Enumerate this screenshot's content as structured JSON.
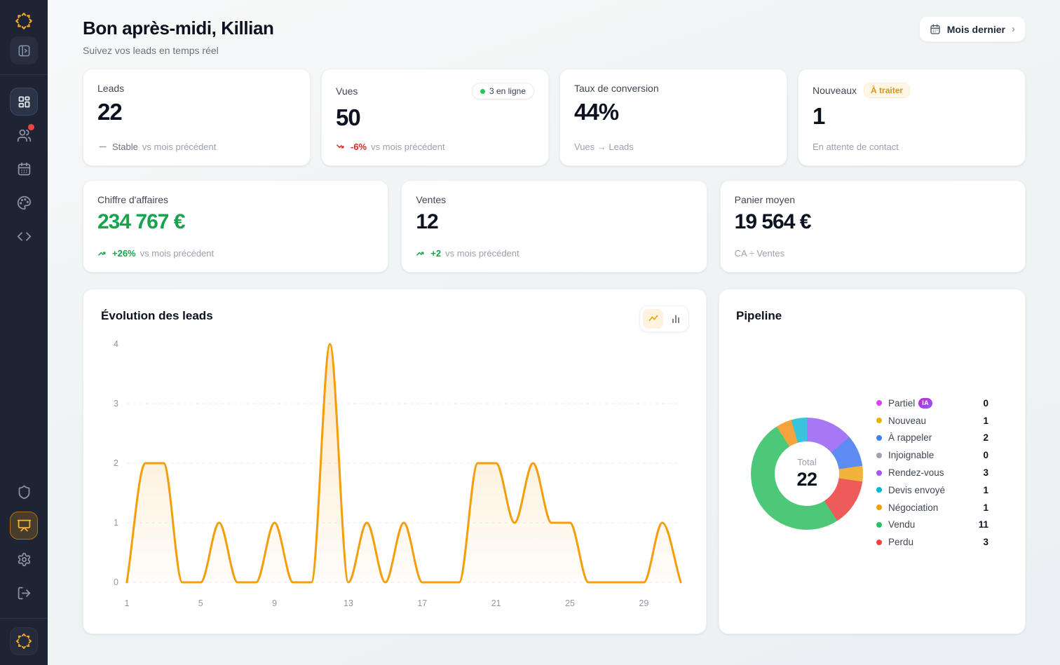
{
  "header": {
    "greeting": "Bon après-midi, Killian",
    "subtitle": "Suivez vos leads en temps réel",
    "period_button": {
      "label": "Mois dernier",
      "icon": "calendar-icon",
      "chevron": "›"
    }
  },
  "sidebar": {
    "icons_top": [
      "logo-starburst-icon",
      "panel-toggle-icon",
      "dashboard-icon",
      "users-icon",
      "calendar-icon",
      "palette-icon",
      "code-icon"
    ],
    "icons_bottom": [
      "shield-icon",
      "presentation-icon",
      "settings-icon",
      "logout-icon",
      "logo-starburst-icon"
    ],
    "active_items": [
      "dashboard-icon",
      "presentation-icon"
    ],
    "notification": {
      "on": "users-icon",
      "color": "#ef4444"
    }
  },
  "stats": {
    "leads": {
      "label": "Leads",
      "value": "22",
      "trend_label": "Stable",
      "suffix": "vs mois précédent"
    },
    "vues": {
      "label": "Vues",
      "value": "50",
      "badge": "3 en ligne",
      "trend": "-6%",
      "suffix": "vs mois précédent"
    },
    "conversion": {
      "label": "Taux de conversion",
      "value": "44%",
      "suffix": "Vues → Leads"
    },
    "nouveaux": {
      "label": "Nouveaux",
      "badge": "À traiter",
      "value": "1",
      "suffix": "En attente de contact"
    },
    "ca": {
      "label": "Chiffre d'affaires",
      "value": "234 767 €",
      "trend": "+26%",
      "suffix": "vs mois précédent"
    },
    "ventes": {
      "label": "Ventes",
      "value": "12",
      "trend": "+2",
      "suffix": "vs mois précédent"
    },
    "panier": {
      "label": "Panier moyen",
      "value": "19 564 €",
      "suffix": "CA ÷ Ventes"
    }
  },
  "chart_data": {
    "type": "area",
    "title": "Évolution des leads",
    "xlabel": "",
    "ylabel": "",
    "x": [
      1,
      2,
      3,
      4,
      5,
      6,
      7,
      8,
      9,
      10,
      11,
      12,
      13,
      14,
      15,
      16,
      17,
      18,
      19,
      20,
      21,
      22,
      23,
      24,
      25,
      26,
      27,
      28,
      29,
      30,
      31
    ],
    "values": [
      0,
      2,
      2,
      0,
      0,
      1,
      0,
      0,
      1,
      0,
      0,
      4,
      0,
      1,
      0,
      1,
      0,
      0,
      0,
      2,
      2,
      1,
      2,
      1,
      1,
      0,
      0,
      0,
      0,
      1,
      0
    ],
    "x_ticks": [
      1,
      5,
      9,
      13,
      17,
      21,
      25,
      29
    ],
    "y_ticks": [
      0,
      1,
      2,
      3,
      4
    ],
    "ylim": [
      0,
      4
    ],
    "line_color": "#f59e0b",
    "fill_color": "#f59e0b",
    "grid": "horizontal-dashed",
    "legend_position": "none"
  },
  "pipeline": {
    "title": "Pipeline",
    "center": {
      "label": "Total",
      "value": "22"
    },
    "items": [
      {
        "label": "Partiel",
        "value": 0,
        "color": "#d946ef",
        "slice_color": "#d946ef",
        "badge": "IA"
      },
      {
        "label": "Nouveau",
        "value": 1,
        "color": "#eab308",
        "slice_color": "#f0b43a"
      },
      {
        "label": "À rappeler",
        "value": 2,
        "color": "#3b82f6",
        "slice_color": "#5c8bf2"
      },
      {
        "label": "Injoignable",
        "value": 0,
        "color": "#9ca3af",
        "slice_color": "#9ca3af"
      },
      {
        "label": "Rendez-vous",
        "value": 3,
        "color": "#a855f7",
        "slice_color": "#a678f5"
      },
      {
        "label": "Devis envoyé",
        "value": 1,
        "color": "#06b6d4",
        "slice_color": "#38c5dc"
      },
      {
        "label": "Négociation",
        "value": 1,
        "color": "#f59e0b",
        "slice_color": "#f5a33c"
      },
      {
        "label": "Vendu",
        "value": 11,
        "color": "#22c55e",
        "slice_color": "#4cc878"
      },
      {
        "label": "Perdu",
        "value": 3,
        "color": "#ef4444",
        "slice_color": "#ee5b5b"
      }
    ],
    "donut_order": [
      "Rendez-vous",
      "À rappeler",
      "Nouveau",
      "Perdu",
      "Vendu",
      "Négociation",
      "Devis envoyé",
      "Partiel",
      "Injoignable"
    ]
  }
}
